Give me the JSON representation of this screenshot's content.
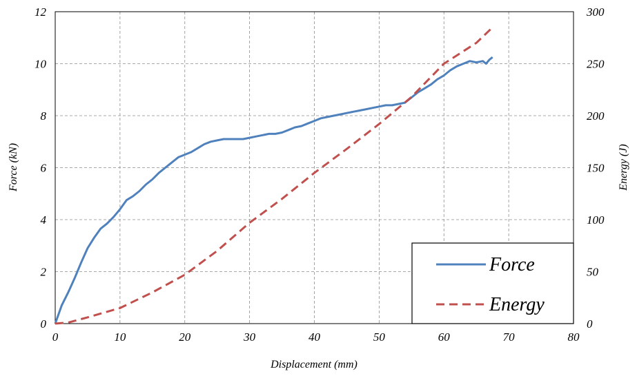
{
  "chart_data": {
    "type": "line",
    "title": "",
    "xlabel": "Displacement (mm)",
    "ylabel": "Force (kN)",
    "y2label": "Energy (J)",
    "xlim": [
      0,
      80
    ],
    "ylim": [
      0,
      12
    ],
    "y2lim": [
      0,
      300
    ],
    "xticks": [
      "0",
      "10",
      "20",
      "30",
      "40",
      "50",
      "60",
      "70",
      "80"
    ],
    "yticks": [
      "0",
      "2",
      "4",
      "6",
      "8",
      "10",
      "12"
    ],
    "y2ticks": [
      "0",
      "50",
      "100",
      "150",
      "200",
      "250",
      "300"
    ],
    "grid": true,
    "legend_position": "bottom-right",
    "series": [
      {
        "name": "Force",
        "axis": "left",
        "color": "#4f81bd",
        "style": "solid",
        "x": [
          0,
          1,
          2,
          3,
          4,
          5,
          6,
          7,
          8,
          9,
          10,
          11,
          12,
          13,
          14,
          15,
          16,
          17,
          18,
          19,
          20,
          21,
          22,
          23,
          24,
          25,
          26,
          27,
          28,
          29,
          30,
          31,
          32,
          33,
          34,
          35,
          36,
          37,
          38,
          39,
          40,
          41,
          42,
          43,
          44,
          45,
          46,
          47,
          48,
          49,
          50,
          51,
          52,
          53,
          54,
          55,
          56,
          57,
          58,
          59,
          60,
          61,
          62,
          63,
          64,
          65,
          66,
          66.5,
          67,
          67.5
        ],
        "values": [
          0,
          0.7,
          1.2,
          1.75,
          2.35,
          2.9,
          3.3,
          3.65,
          3.85,
          4.1,
          4.4,
          4.75,
          4.9,
          5.1,
          5.35,
          5.55,
          5.8,
          6.0,
          6.2,
          6.4,
          6.5,
          6.6,
          6.75,
          6.9,
          7.0,
          7.05,
          7.1,
          7.1,
          7.1,
          7.1,
          7.15,
          7.2,
          7.25,
          7.3,
          7.3,
          7.35,
          7.45,
          7.55,
          7.6,
          7.7,
          7.8,
          7.9,
          7.95,
          8.0,
          8.05,
          8.1,
          8.15,
          8.2,
          8.25,
          8.3,
          8.35,
          8.4,
          8.4,
          8.45,
          8.5,
          8.7,
          8.9,
          9.05,
          9.2,
          9.4,
          9.55,
          9.75,
          9.9,
          10.0,
          10.1,
          10.05,
          10.1,
          10.0,
          10.15,
          10.25
        ]
      },
      {
        "name": "Energy",
        "axis": "right",
        "color": "#c0504d",
        "style": "dashed",
        "x": [
          0,
          2,
          5,
          10,
          15,
          20,
          25,
          30,
          35,
          40,
          45,
          50,
          55,
          60,
          65,
          67.5
        ],
        "values": [
          0,
          1,
          6,
          15,
          30,
          47,
          70,
          97,
          120,
          145,
          168,
          192,
          218,
          250,
          270,
          285
        ]
      }
    ]
  }
}
